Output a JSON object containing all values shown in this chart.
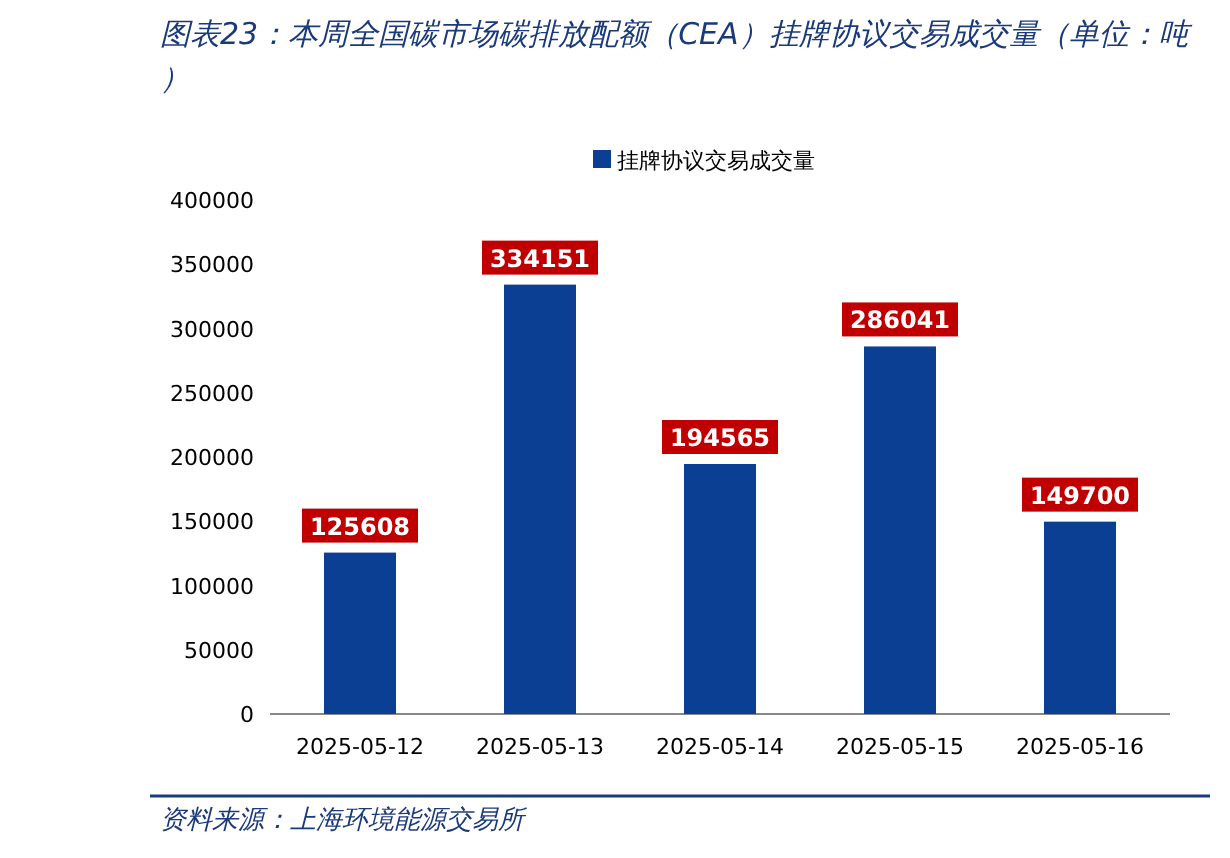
{
  "chart_data": {
    "type": "bar",
    "title": "图表23：本周全国碳市场碳排放配额（CEA）挂牌协议交易成交量（单位：吨）",
    "categories": [
      "2025-05-12",
      "2025-05-13",
      "2025-05-14",
      "2025-05-15",
      "2025-05-16"
    ],
    "series": [
      {
        "name": "挂牌协议交易成交量",
        "color": "#0b3f93",
        "values": [
          125608,
          334151,
          194565,
          286041,
          149700
        ]
      }
    ],
    "ylim": [
      0,
      400000
    ],
    "yticks": [
      0,
      50000,
      100000,
      150000,
      200000,
      250000,
      300000,
      350000,
      400000
    ],
    "data_labels": true,
    "legend": "top",
    "grid": false,
    "annotations": [
      "资料来源：上海环境能源交易所"
    ]
  }
}
